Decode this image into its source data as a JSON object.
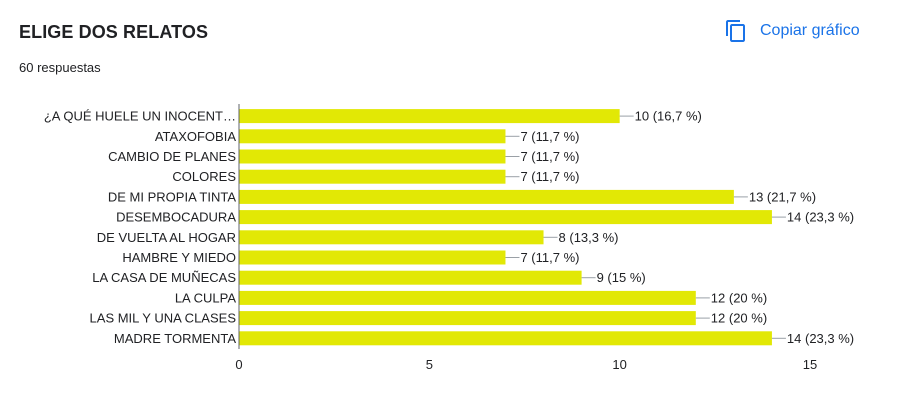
{
  "header": {
    "title": "ELIGE DOS RELATOS",
    "responses": "60 respuestas",
    "copy_label": "Copiar gráfico",
    "copy_icon": "copy-icon"
  },
  "colors": {
    "bar": "#e2e805",
    "accent": "#1a73e8",
    "axis": "#9aa0a6",
    "text": "#202124"
  },
  "chart_data": {
    "type": "bar",
    "orientation": "horizontal",
    "categories": [
      "¿A QUÉ HUELE UN INOCENT…",
      "ATAXOFOBIA",
      "CAMBIO DE PLANES",
      "COLORES",
      "DE MI PROPIA TINTA",
      "DESEMBOCADURA",
      "DE VUELTA AL HOGAR",
      "HAMBRE Y MIEDO",
      "LA CASA DE MUÑECAS",
      "LA CULPA",
      "LAS MIL Y UNA CLASES",
      "MADRE TORMENTA"
    ],
    "values": [
      10,
      7,
      7,
      7,
      13,
      14,
      8,
      7,
      9,
      12,
      12,
      14
    ],
    "data_labels": [
      "10 (16,7 %)",
      "7 (11,7 %)",
      "7 (11,7 %)",
      "7 (11,7 %)",
      "13 (21,7 %)",
      "14 (23,3 %)",
      "8 (13,3 %)",
      "7 (11,7 %)",
      "9 (15 %)",
      "12 (20 %)",
      "12 (20 %)",
      "14 (23,3 %)"
    ],
    "xticks": [
      0,
      5,
      10,
      15
    ],
    "xlim": [
      0,
      15
    ],
    "grid": false,
    "legend": "none"
  }
}
